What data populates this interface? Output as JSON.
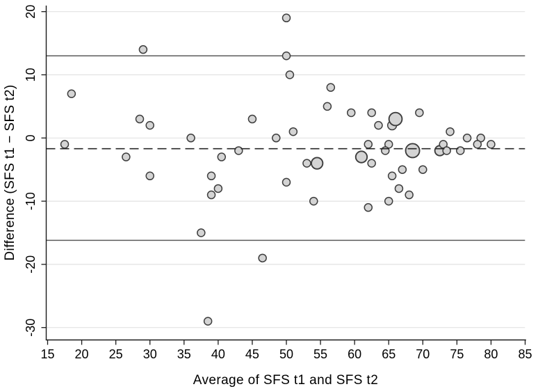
{
  "figure": {
    "background": "#ffffff"
  },
  "chart_data": {
    "type": "scatter",
    "subtype": "bland-altman",
    "title": "",
    "xlabel": "Average of SFS t1 and SFS t2",
    "ylabel": "Difference (SFS t1 − SFS t2)",
    "xlim": [
      13.5,
      86
    ],
    "ylim": [
      -32,
      21
    ],
    "xticks": [
      15,
      20,
      25,
      30,
      35,
      40,
      45,
      50,
      55,
      60,
      65,
      70,
      75,
      80,
      85
    ],
    "yticks": [
      20,
      10,
      0,
      -10,
      -20,
      -30
    ],
    "grid": "horizontal-only",
    "legend": "none",
    "reference_lines": [
      {
        "name": "upper-limit-of-agreement",
        "value": 13.0,
        "style": "solid"
      },
      {
        "name": "mean-difference",
        "value": -1.7,
        "style": "dashed"
      },
      {
        "name": "lower-limit-of-agreement",
        "value": -16.2,
        "style": "solid"
      }
    ],
    "points_format": [
      "x",
      "y",
      "marker_radius_px"
    ],
    "points": [
      [
        17.5,
        -1,
        5.5
      ],
      [
        18.5,
        7,
        5.5
      ],
      [
        26.5,
        -3,
        5.5
      ],
      [
        28.5,
        3,
        5.5
      ],
      [
        29,
        14,
        5.5
      ],
      [
        30,
        2,
        5.5
      ],
      [
        30,
        -6,
        5.5
      ],
      [
        36,
        0,
        5.5
      ],
      [
        37.5,
        -15,
        5.5
      ],
      [
        38.5,
        -29,
        5.5
      ],
      [
        39,
        -6,
        5.5
      ],
      [
        39,
        -9,
        5.5
      ],
      [
        40,
        -8,
        5.5
      ],
      [
        40.5,
        -3,
        5.5
      ],
      [
        43,
        -2,
        5.5
      ],
      [
        45,
        3,
        5.5
      ],
      [
        46.5,
        -19,
        5.5
      ],
      [
        48.5,
        0,
        5.5
      ],
      [
        50,
        19,
        5.5
      ],
      [
        50,
        13,
        5.5
      ],
      [
        50.5,
        10,
        5.5
      ],
      [
        51,
        1,
        5.5
      ],
      [
        50,
        -7,
        5.5
      ],
      [
        53,
        -4,
        5.5
      ],
      [
        54.5,
        -4,
        8.2
      ],
      [
        54,
        -10,
        5.5
      ],
      [
        56.5,
        8,
        5.5
      ],
      [
        56,
        5,
        5.5
      ],
      [
        59.5,
        4,
        5.5
      ],
      [
        62.5,
        4,
        5.5
      ],
      [
        63.5,
        2,
        5.5
      ],
      [
        65.5,
        2,
        6.4
      ],
      [
        66,
        3,
        9.4
      ],
      [
        69.5,
        4,
        5.5
      ],
      [
        74,
        1,
        5.5
      ],
      [
        62,
        -1,
        5.5
      ],
      [
        65,
        -1,
        5.5
      ],
      [
        64.5,
        -2,
        5.5
      ],
      [
        68.5,
        -2,
        10
      ],
      [
        72.5,
        -2,
        7.2
      ],
      [
        73,
        -1,
        5.5
      ],
      [
        73.5,
        -2,
        5.5
      ],
      [
        75.5,
        -2,
        5.5
      ],
      [
        76.5,
        0,
        5.5
      ],
      [
        78.5,
        0,
        5.5
      ],
      [
        78,
        -1,
        5.5
      ],
      [
        80,
        -1,
        5.5
      ],
      [
        61,
        -3,
        8.2
      ],
      [
        62.5,
        -4,
        5.5
      ],
      [
        67,
        -5,
        5.5
      ],
      [
        70,
        -5,
        5.5
      ],
      [
        65.5,
        -6,
        5.5
      ],
      [
        66.5,
        -8,
        5.5
      ],
      [
        68,
        -9,
        5.5
      ],
      [
        65,
        -10,
        5.5
      ],
      [
        62,
        -11,
        5.5
      ]
    ],
    "colors": {
      "marker_fill": "#d4d4d4",
      "marker_stroke": "#3d3d3d",
      "gridline": "#e2e2e2",
      "axis": "#1a1a1a",
      "loa_line": "#5a5a5a",
      "mean_line": "#262626",
      "text": "#000000"
    }
  }
}
